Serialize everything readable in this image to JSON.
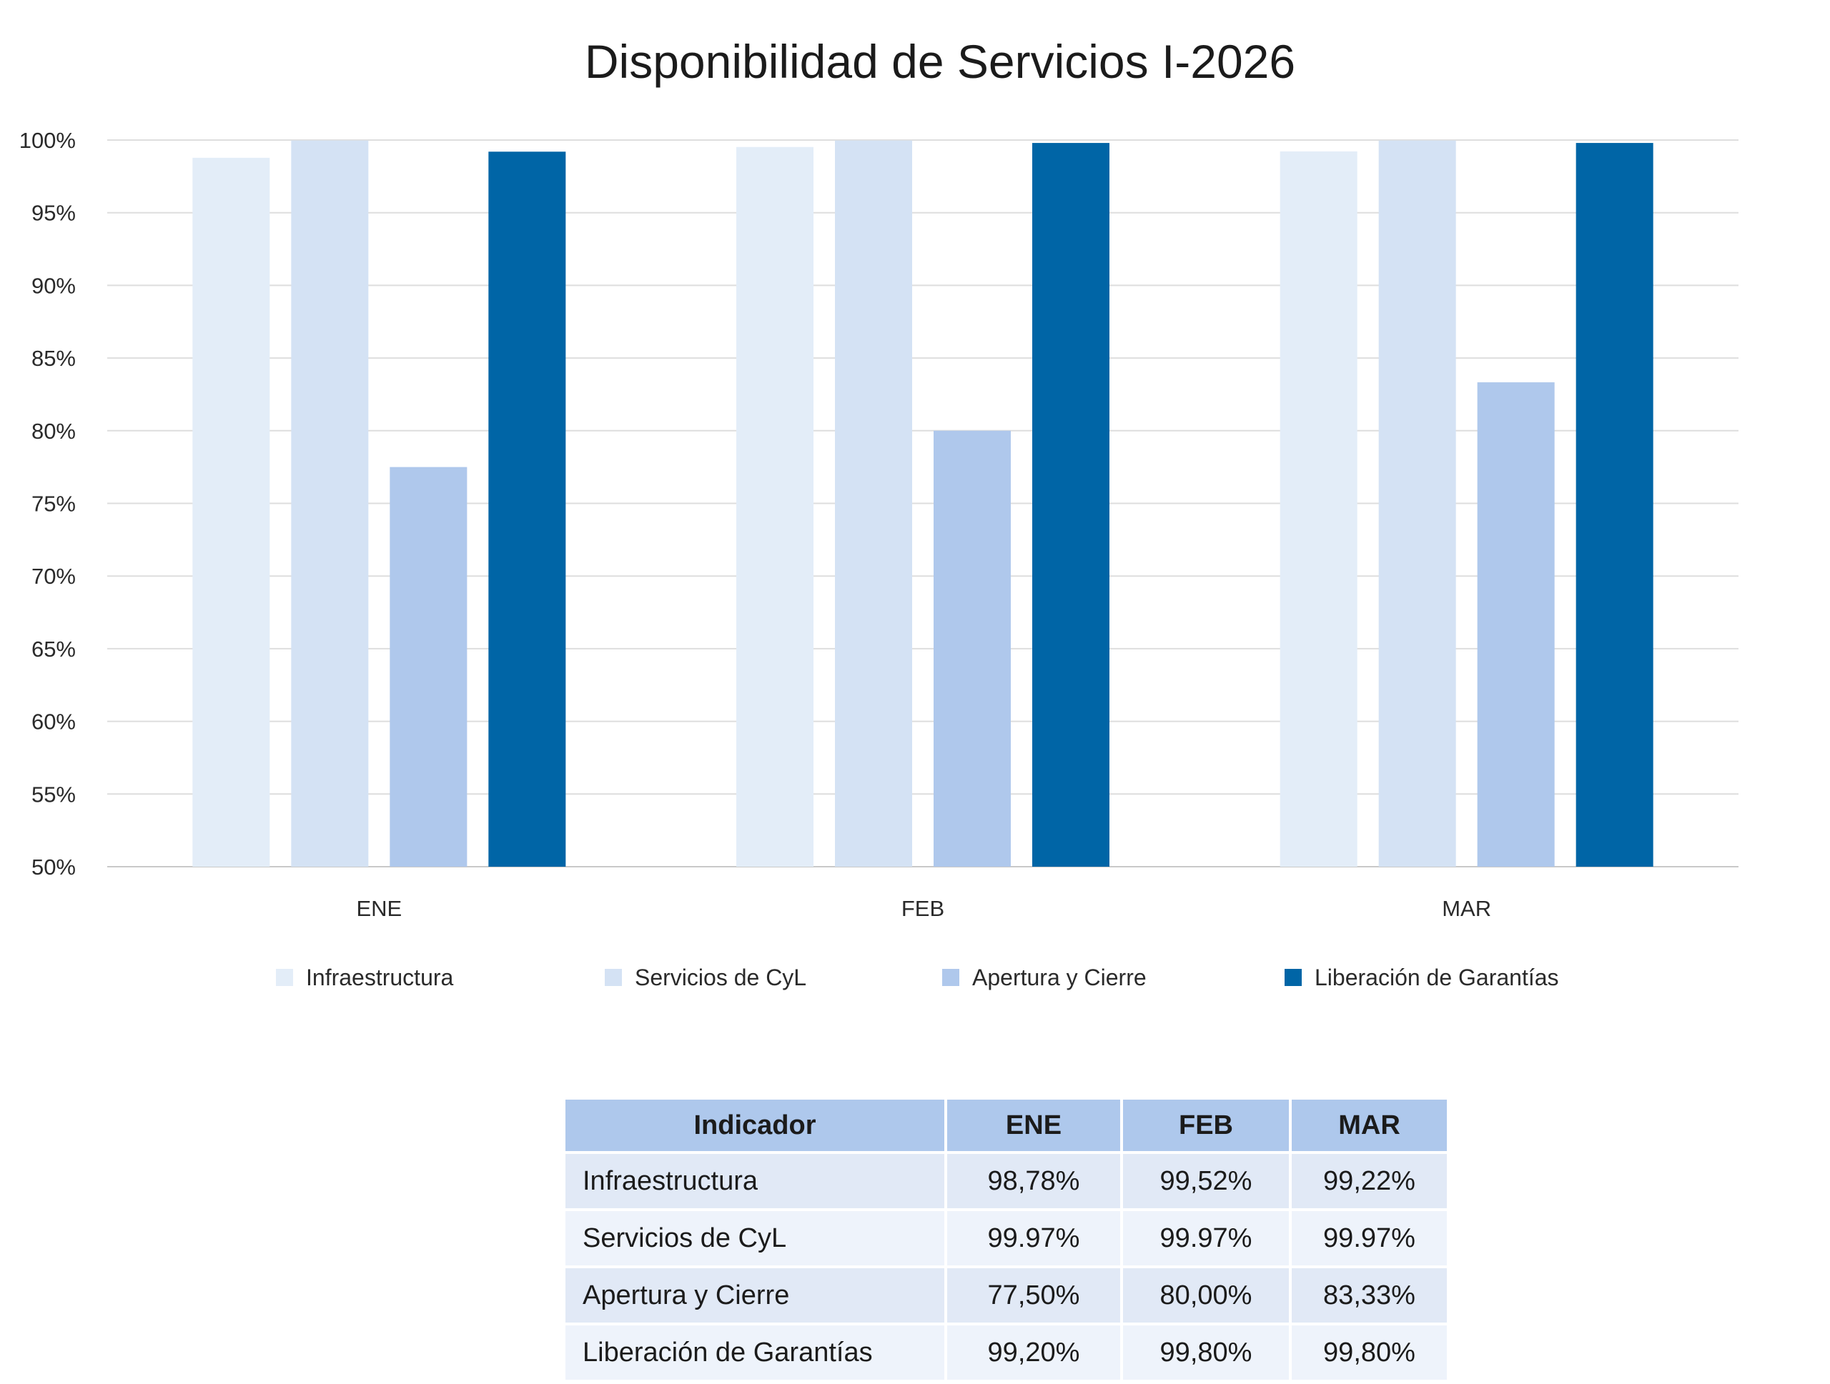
{
  "chart_data": {
    "type": "bar",
    "title": "Disponibilidad de Servicios I-2026",
    "categories": [
      "ENE",
      "FEB",
      "MAR"
    ],
    "ylim": [
      50,
      100
    ],
    "y_ticks": [
      "50%",
      "55%",
      "60%",
      "65%",
      "70%",
      "75%",
      "80%",
      "85%",
      "90%",
      "95%",
      "100%"
    ],
    "grid": true,
    "legend_position": "bottom",
    "series": [
      {
        "name": "Infraestructura",
        "color": "#e3edf8",
        "values": [
          98.78,
          99.52,
          99.22
        ]
      },
      {
        "name": "Servicios de CyL",
        "color": "#d4e2f4",
        "values": [
          99.97,
          99.97,
          99.97
        ]
      },
      {
        "name": "Apertura y Cierre",
        "color": "#afc8ec",
        "values": [
          77.5,
          80.0,
          83.33
        ]
      },
      {
        "name": "Liberación de Garantías",
        "color": "#0065a6",
        "values": [
          99.2,
          99.8,
          99.8
        ]
      }
    ]
  },
  "table": {
    "headers": [
      "Indicador",
      "ENE",
      "FEB",
      "MAR"
    ],
    "rows": [
      [
        "Infraestructura",
        "98,78%",
        "99,52%",
        "99,22%"
      ],
      [
        "Servicios de CyL",
        "99.97%",
        "99.97%",
        "99.97%"
      ],
      [
        "Apertura y Cierre",
        "77,50%",
        "80,00%",
        "83,33%"
      ],
      [
        "Liberación de Garantías",
        "99,20%",
        "99,80%",
        "99,80%"
      ]
    ]
  }
}
